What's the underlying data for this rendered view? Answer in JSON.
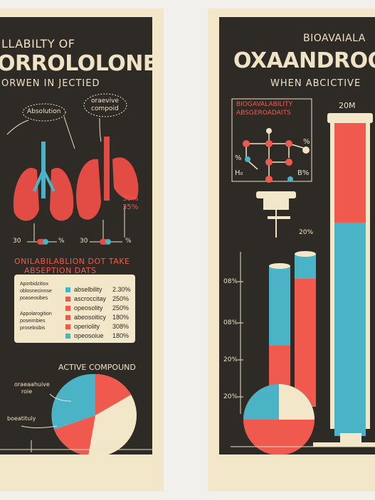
{
  "left_poster": {
    "title_line1": "LLABILTY OF",
    "title_line2": "ORROLOLONE",
    "title_line3": "ORWEN IN JECTIED",
    "callout_left": "Absolution",
    "callout_right_line1": "oraevive",
    "callout_right_line2": "compoid",
    "pct_line1": "30%",
    "pct_line2": "35%",
    "marker_left": "30",
    "marker_left_pct": "%",
    "marker_right": "30",
    "marker_right_pct": "%",
    "subtitle_line1": "ONILABILABLION DOT TAKE",
    "subtitle_line2": "ABSEPTION DATS",
    "legend_left_lines": [
      "Aporbidzitiox",
      "oblosnecinnse",
      "poaseosibes",
      "Appolarogition",
      "poseimbies",
      "prosebsibis"
    ],
    "legend": [
      {
        "label": "abselbility",
        "value": "2.30%",
        "color": "#4ab4c6"
      },
      {
        "label": "ascroccitay",
        "value": "250%",
        "color": "#f05a4e"
      },
      {
        "label": "opeosolity",
        "value": "250%",
        "color": "#f05a4e"
      },
      {
        "label": "abeosoiticy",
        "value": "180%",
        "color": "#f05a4e"
      },
      {
        "label": "operiolity",
        "value": "308%",
        "color": "#f05a4e"
      },
      {
        "label": "opeosoiue",
        "value": "180%",
        "color": "#4ab4c6"
      }
    ],
    "pie_label": "ACTIVE COMPOUND",
    "pie_callout_1_line1": "oraeaahuive",
    "pie_callout_1_line2": "roie",
    "pie_callout_2": "boeatituly"
  },
  "right_poster": {
    "title_line1": "BIOAVAIALA",
    "title_line2": "OXAANDROO",
    "title_line3": "WHEN ABCICTIVE",
    "chart_title_line1": "BIOGAVALABILITY",
    "chart_title_line2": "ABSGEROADAITS",
    "node_label_left": "%",
    "node_label_right": "%",
    "h_label": "H₀",
    "b_label": "B%",
    "cylinder_label": "20M",
    "tube_pct": "20%",
    "axis_labels": [
      "08%",
      "08%",
      "20%",
      "20%"
    ],
    "colors": {
      "red": "#f05a4e",
      "teal": "#4ab4c6",
      "cream": "#f3e7c9",
      "dark": "#2e2a26"
    }
  }
}
